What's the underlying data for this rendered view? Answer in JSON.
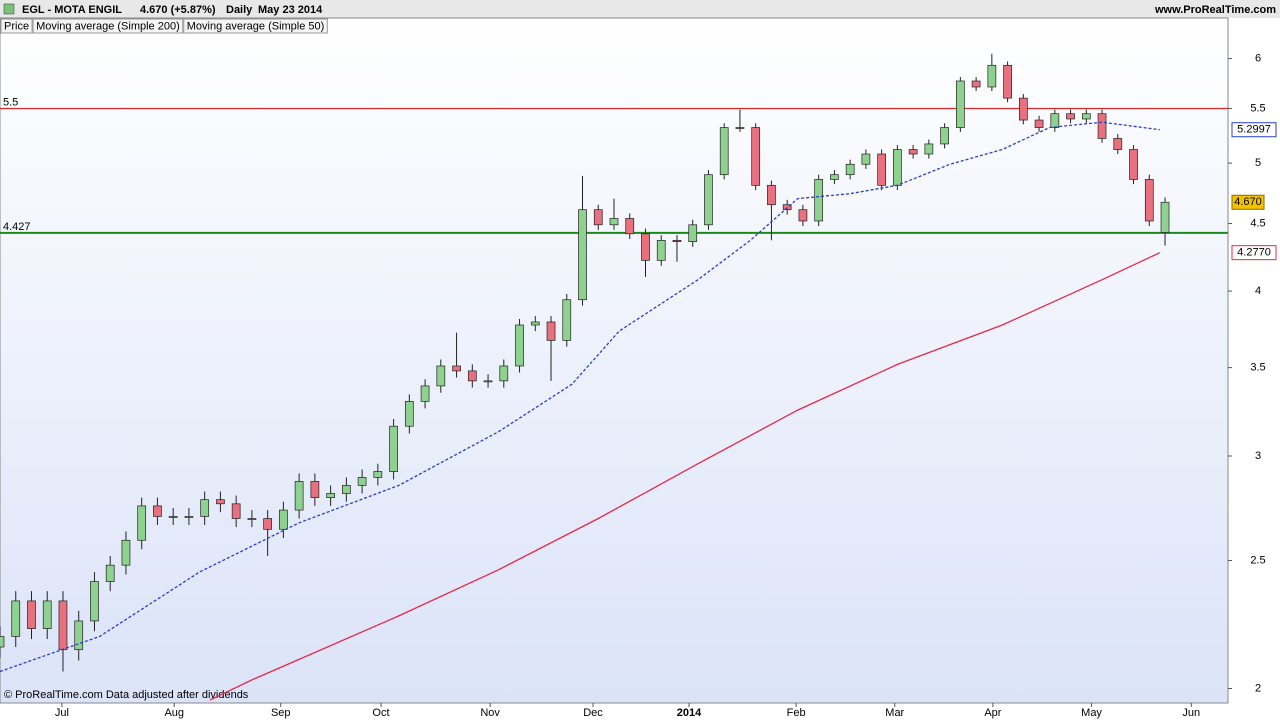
{
  "chart_data": {
    "type": "candlestick",
    "title": "EGL - MOTA ENGIL",
    "price_change": "4.670 (+5.87%)",
    "period": "Daily",
    "date": "May 23 2014",
    "source": "www.ProRealTime.com",
    "footnote": "© ProRealTime.com  Data adjusted after dividends",
    "price_label": "Price",
    "log_scale": true,
    "ylim": [
      1.95,
      6.44
    ],
    "yticks": [
      2,
      2.5,
      3,
      3.5,
      4,
      4.5,
      5,
      5.5,
      6
    ],
    "xlim": [
      0,
      234
    ],
    "xticks": [
      {
        "value": 11.8,
        "label": "Jul"
      },
      {
        "value": 33.2,
        "label": "Aug"
      },
      {
        "value": 53.5,
        "label": "Sep"
      },
      {
        "value": 72.6,
        "label": "Oct"
      },
      {
        "value": 93.4,
        "label": "Nov"
      },
      {
        "value": 113,
        "label": "Dec"
      },
      {
        "value": 131.3,
        "label": "2014"
      },
      {
        "value": 151.7,
        "label": "Feb"
      },
      {
        "value": 170.5,
        "label": "Mar"
      },
      {
        "value": 189.2,
        "label": "Apr"
      },
      {
        "value": 208,
        "label": "May"
      },
      {
        "value": 227,
        "label": "Jun"
      }
    ],
    "candles": {
      "up_color": "#8fd18f",
      "down_color": "#e8707f",
      "x": [
        0,
        3,
        6,
        9,
        12,
        15,
        18,
        21,
        24,
        27,
        30,
        33,
        36,
        39,
        42,
        45,
        48,
        51,
        54,
        57,
        60,
        63,
        66,
        69,
        72,
        75,
        78,
        81,
        84,
        87,
        90,
        93,
        96,
        99,
        102,
        105,
        108,
        111,
        114,
        117,
        120,
        123,
        126,
        129,
        132,
        135,
        138,
        141,
        144,
        147,
        150,
        153,
        156,
        159,
        162,
        165,
        168,
        171,
        174,
        177,
        180,
        183,
        186,
        189,
        192,
        195,
        198,
        201,
        204,
        207,
        210,
        213,
        216,
        219,
        222
      ],
      "open": [
        2.15,
        2.19,
        2.33,
        2.22,
        2.33,
        2.14,
        2.25,
        2.41,
        2.48,
        2.59,
        2.75,
        2.7,
        2.7,
        2.7,
        2.78,
        2.76,
        2.69,
        2.69,
        2.64,
        2.73,
        2.87,
        2.79,
        2.81,
        2.85,
        2.89,
        2.92,
        3.16,
        3.3,
        3.39,
        3.51,
        3.48,
        3.42,
        3.42,
        3.51,
        3.77,
        3.79,
        3.67,
        3.94,
        4.61,
        4.49,
        4.54,
        4.42,
        4.22,
        4.37,
        4.36,
        4.49,
        4.9,
        5.32,
        5.32,
        4.81,
        4.65,
        4.61,
        4.52,
        4.86,
        4.9,
        4.99,
        5.08,
        4.81,
        5.12,
        5.08,
        5.17,
        5.32,
        5.77,
        5.71,
        5.93,
        5.6,
        5.39,
        5.32,
        5.45,
        5.4,
        5.45,
        5.22,
        5.12,
        4.86,
        4.43
      ],
      "high": [
        2.23,
        2.37,
        2.37,
        2.37,
        2.37,
        2.29,
        2.45,
        2.52,
        2.63,
        2.79,
        2.79,
        2.74,
        2.74,
        2.82,
        2.82,
        2.8,
        2.73,
        2.73,
        2.77,
        2.91,
        2.91,
        2.85,
        2.89,
        2.93,
        2.96,
        3.2,
        3.34,
        3.43,
        3.55,
        3.72,
        3.52,
        3.46,
        3.55,
        3.81,
        3.83,
        3.83,
        3.98,
        4.89,
        4.65,
        4.7,
        4.58,
        4.46,
        4.41,
        4.41,
        4.53,
        4.94,
        5.36,
        5.49,
        5.36,
        4.85,
        4.69,
        4.65,
        4.9,
        4.94,
        5.03,
        5.12,
        5.12,
        5.16,
        5.16,
        5.21,
        5.36,
        5.81,
        5.81,
        6.05,
        5.97,
        5.64,
        5.43,
        5.49,
        5.49,
        5.49,
        5.49,
        5.26,
        5.16,
        4.9,
        4.71
      ],
      "low": [
        2.11,
        2.15,
        2.18,
        2.18,
        2.06,
        2.1,
        2.21,
        2.37,
        2.44,
        2.55,
        2.66,
        2.66,
        2.66,
        2.66,
        2.72,
        2.65,
        2.65,
        2.52,
        2.6,
        2.69,
        2.75,
        2.75,
        2.77,
        2.81,
        2.85,
        2.88,
        3.12,
        3.26,
        3.35,
        3.44,
        3.38,
        3.38,
        3.38,
        3.47,
        3.73,
        3.42,
        3.63,
        3.9,
        4.45,
        4.45,
        4.38,
        4.1,
        4.18,
        4.21,
        4.32,
        4.45,
        4.86,
        5.28,
        4.77,
        4.37,
        4.57,
        4.48,
        4.48,
        4.82,
        4.86,
        4.95,
        4.77,
        4.77,
        5.04,
        5.04,
        5.13,
        5.28,
        5.67,
        5.67,
        5.56,
        5.35,
        5.28,
        5.28,
        5.36,
        5.36,
        5.18,
        5.08,
        4.82,
        4.48,
        4.33
      ],
      "close": [
        2.19,
        2.33,
        2.22,
        2.33,
        2.14,
        2.25,
        2.41,
        2.48,
        2.59,
        2.75,
        2.7,
        2.7,
        2.7,
        2.78,
        2.76,
        2.69,
        2.69,
        2.64,
        2.73,
        2.87,
        2.79,
        2.81,
        2.85,
        2.89,
        2.92,
        3.16,
        3.3,
        3.39,
        3.51,
        3.48,
        3.42,
        3.42,
        3.51,
        3.77,
        3.79,
        3.67,
        3.94,
        4.61,
        4.49,
        4.54,
        4.42,
        4.22,
        4.37,
        4.36,
        4.49,
        4.9,
        5.32,
        5.32,
        4.81,
        4.65,
        4.61,
        4.52,
        4.86,
        4.9,
        4.99,
        5.08,
        4.81,
        5.12,
        5.08,
        5.17,
        5.32,
        5.77,
        5.71,
        5.93,
        5.6,
        5.39,
        5.32,
        5.45,
        5.4,
        5.45,
        5.22,
        5.12,
        4.86,
        4.52,
        4.67
      ]
    },
    "last_price": {
      "value": 4.67,
      "label": "4.670",
      "color": "#f2c200"
    },
    "series": [
      {
        "name": "Moving average (Simple 200)",
        "color": "#e8284a",
        "dashed": false,
        "x": [
          40,
          48,
          76,
          95,
          114,
          133,
          152,
          171,
          191,
          210,
          221
        ],
        "values": [
          1.96,
          2.03,
          2.27,
          2.46,
          2.69,
          2.96,
          3.25,
          3.52,
          3.77,
          4.08,
          4.277
        ],
        "end_label": {
          "value": 4.277,
          "label": "4.2770"
        }
      },
      {
        "name": "Moving average (Simple 50)",
        "color": "#2a3fc8",
        "dashed": true,
        "x": [
          0,
          19,
          38,
          57,
          76,
          95,
          109,
          118,
          133,
          143,
          152,
          162,
          171,
          181,
          191,
          200,
          210,
          221
        ],
        "values": [
          2.06,
          2.19,
          2.45,
          2.67,
          2.85,
          3.13,
          3.4,
          3.73,
          4.08,
          4.37,
          4.7,
          4.74,
          4.81,
          4.99,
          5.12,
          5.32,
          5.37,
          5.2997
        ],
        "end_label": {
          "value": 5.2997,
          "label": "5.2997"
        }
      }
    ],
    "levels": [
      {
        "value": 5.5,
        "color": "#d42a2a"
      },
      {
        "value": 4.427,
        "color": "#1a8a1a"
      }
    ]
  }
}
